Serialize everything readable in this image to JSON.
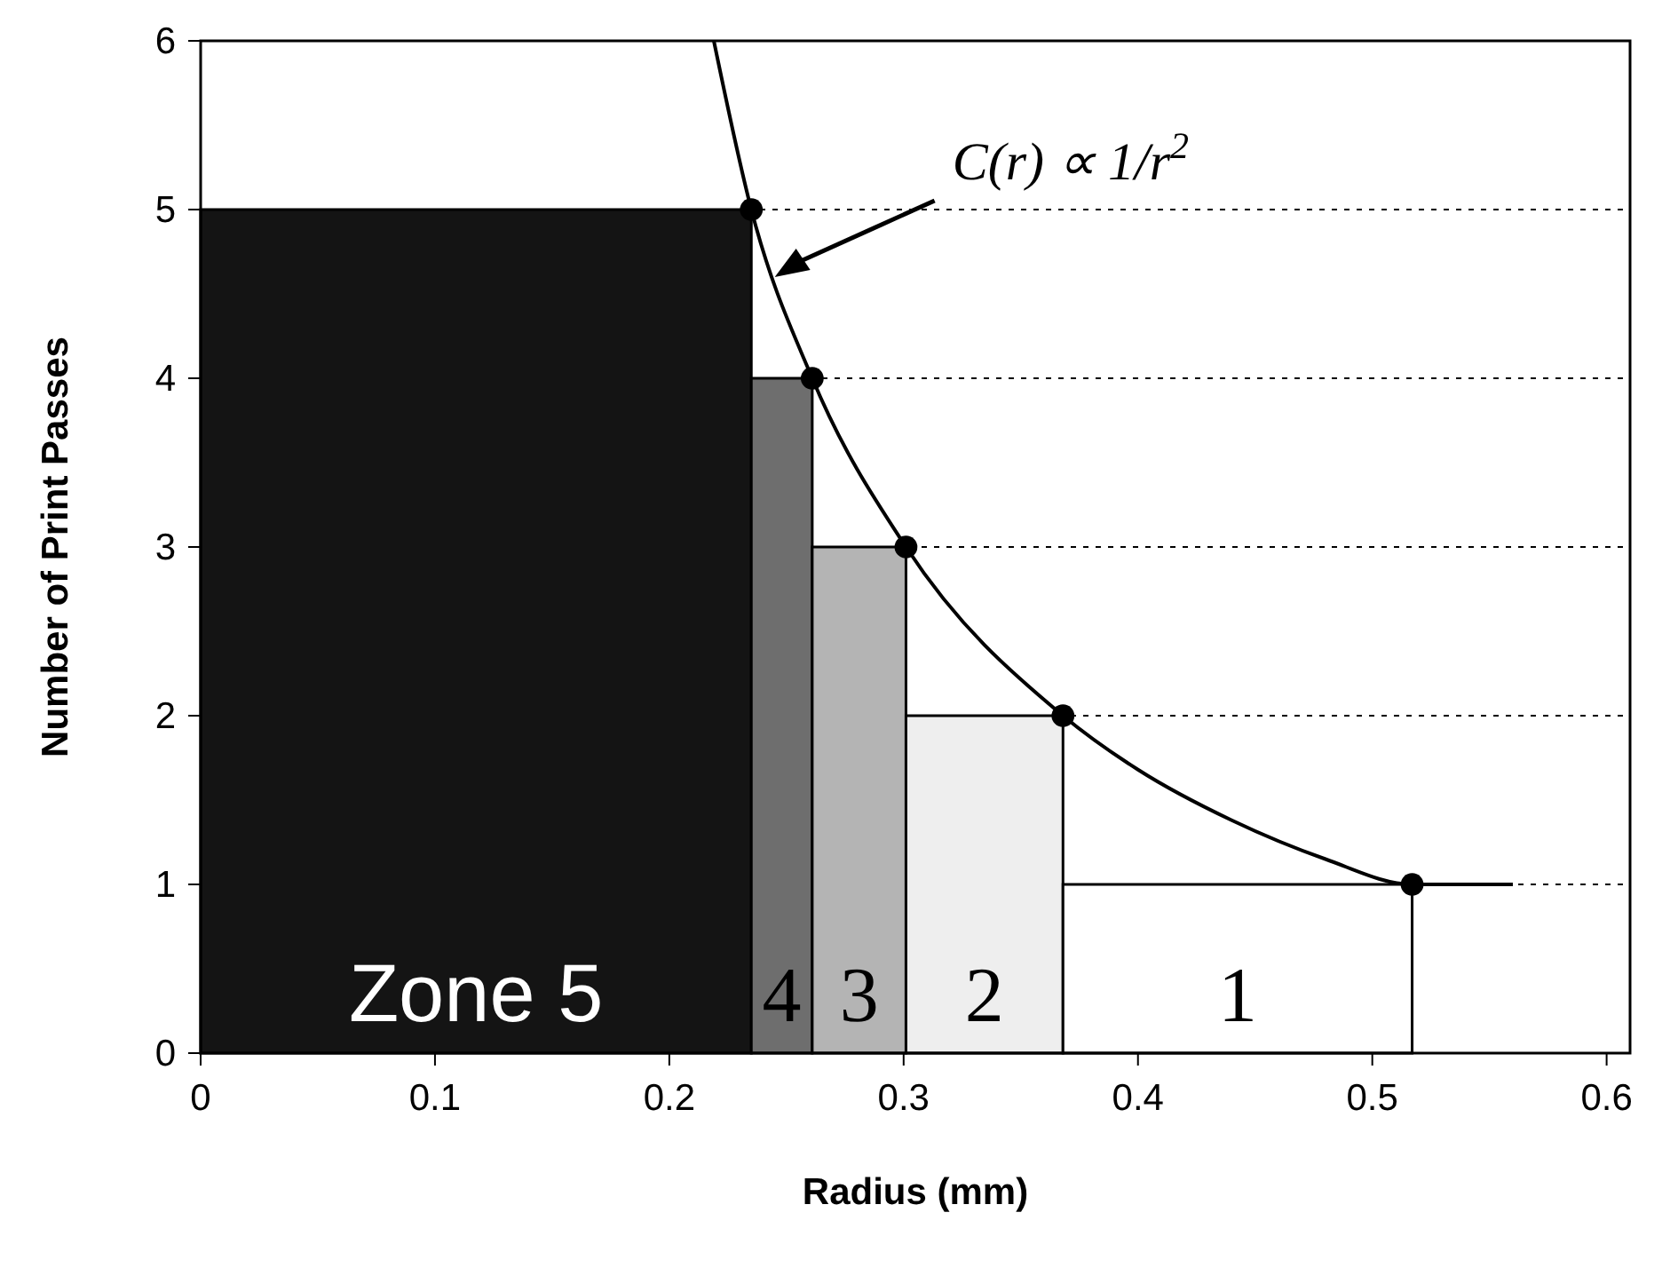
{
  "chart_data": {
    "type": "histogram",
    "xlabel": "Radius (mm)",
    "ylabel": "Number of Print Passes",
    "xlim": [
      0,
      0.61
    ],
    "xticks": [
      0,
      0.1,
      0.2,
      0.3,
      0.4,
      0.5,
      0.6
    ],
    "ylim": [
      0,
      6
    ],
    "yticks": [
      0,
      1,
      2,
      3,
      4,
      5,
      6
    ],
    "grid": "y",
    "series": [
      {
        "bins": [
          0,
          0.235,
          0.261,
          0.301,
          0.368,
          0.517
        ],
        "values": [
          5,
          4,
          3,
          2,
          1
        ],
        "colors": [
          "#141414",
          "#6e6e6e",
          "#b4b4b4",
          "#eeeeee",
          "#ffffff"
        ],
        "value_labels": [
          "Zone 5",
          "4",
          "3",
          "2",
          "1"
        ]
      },
      {
        "type": "line",
        "color": "#000000",
        "marker": "none",
        "x": [
          0.219,
          0.235,
          0.261,
          0.301,
          0.368,
          0.4,
          0.44,
          0.48,
          0.517,
          0.56
        ],
        "values": [
          6,
          5,
          4,
          3,
          2,
          1.68,
          1.38,
          1.15,
          1,
          1
        ]
      },
      {
        "type": "scatter",
        "color": "#000000",
        "marker": "circle",
        "x": [
          0.235,
          0.261,
          0.301,
          0.368,
          0.517
        ],
        "values": [
          5,
          4,
          3,
          2,
          1
        ]
      }
    ],
    "annotations": [
      "C(r) ∝ 1/r$^{2}$"
    ]
  }
}
